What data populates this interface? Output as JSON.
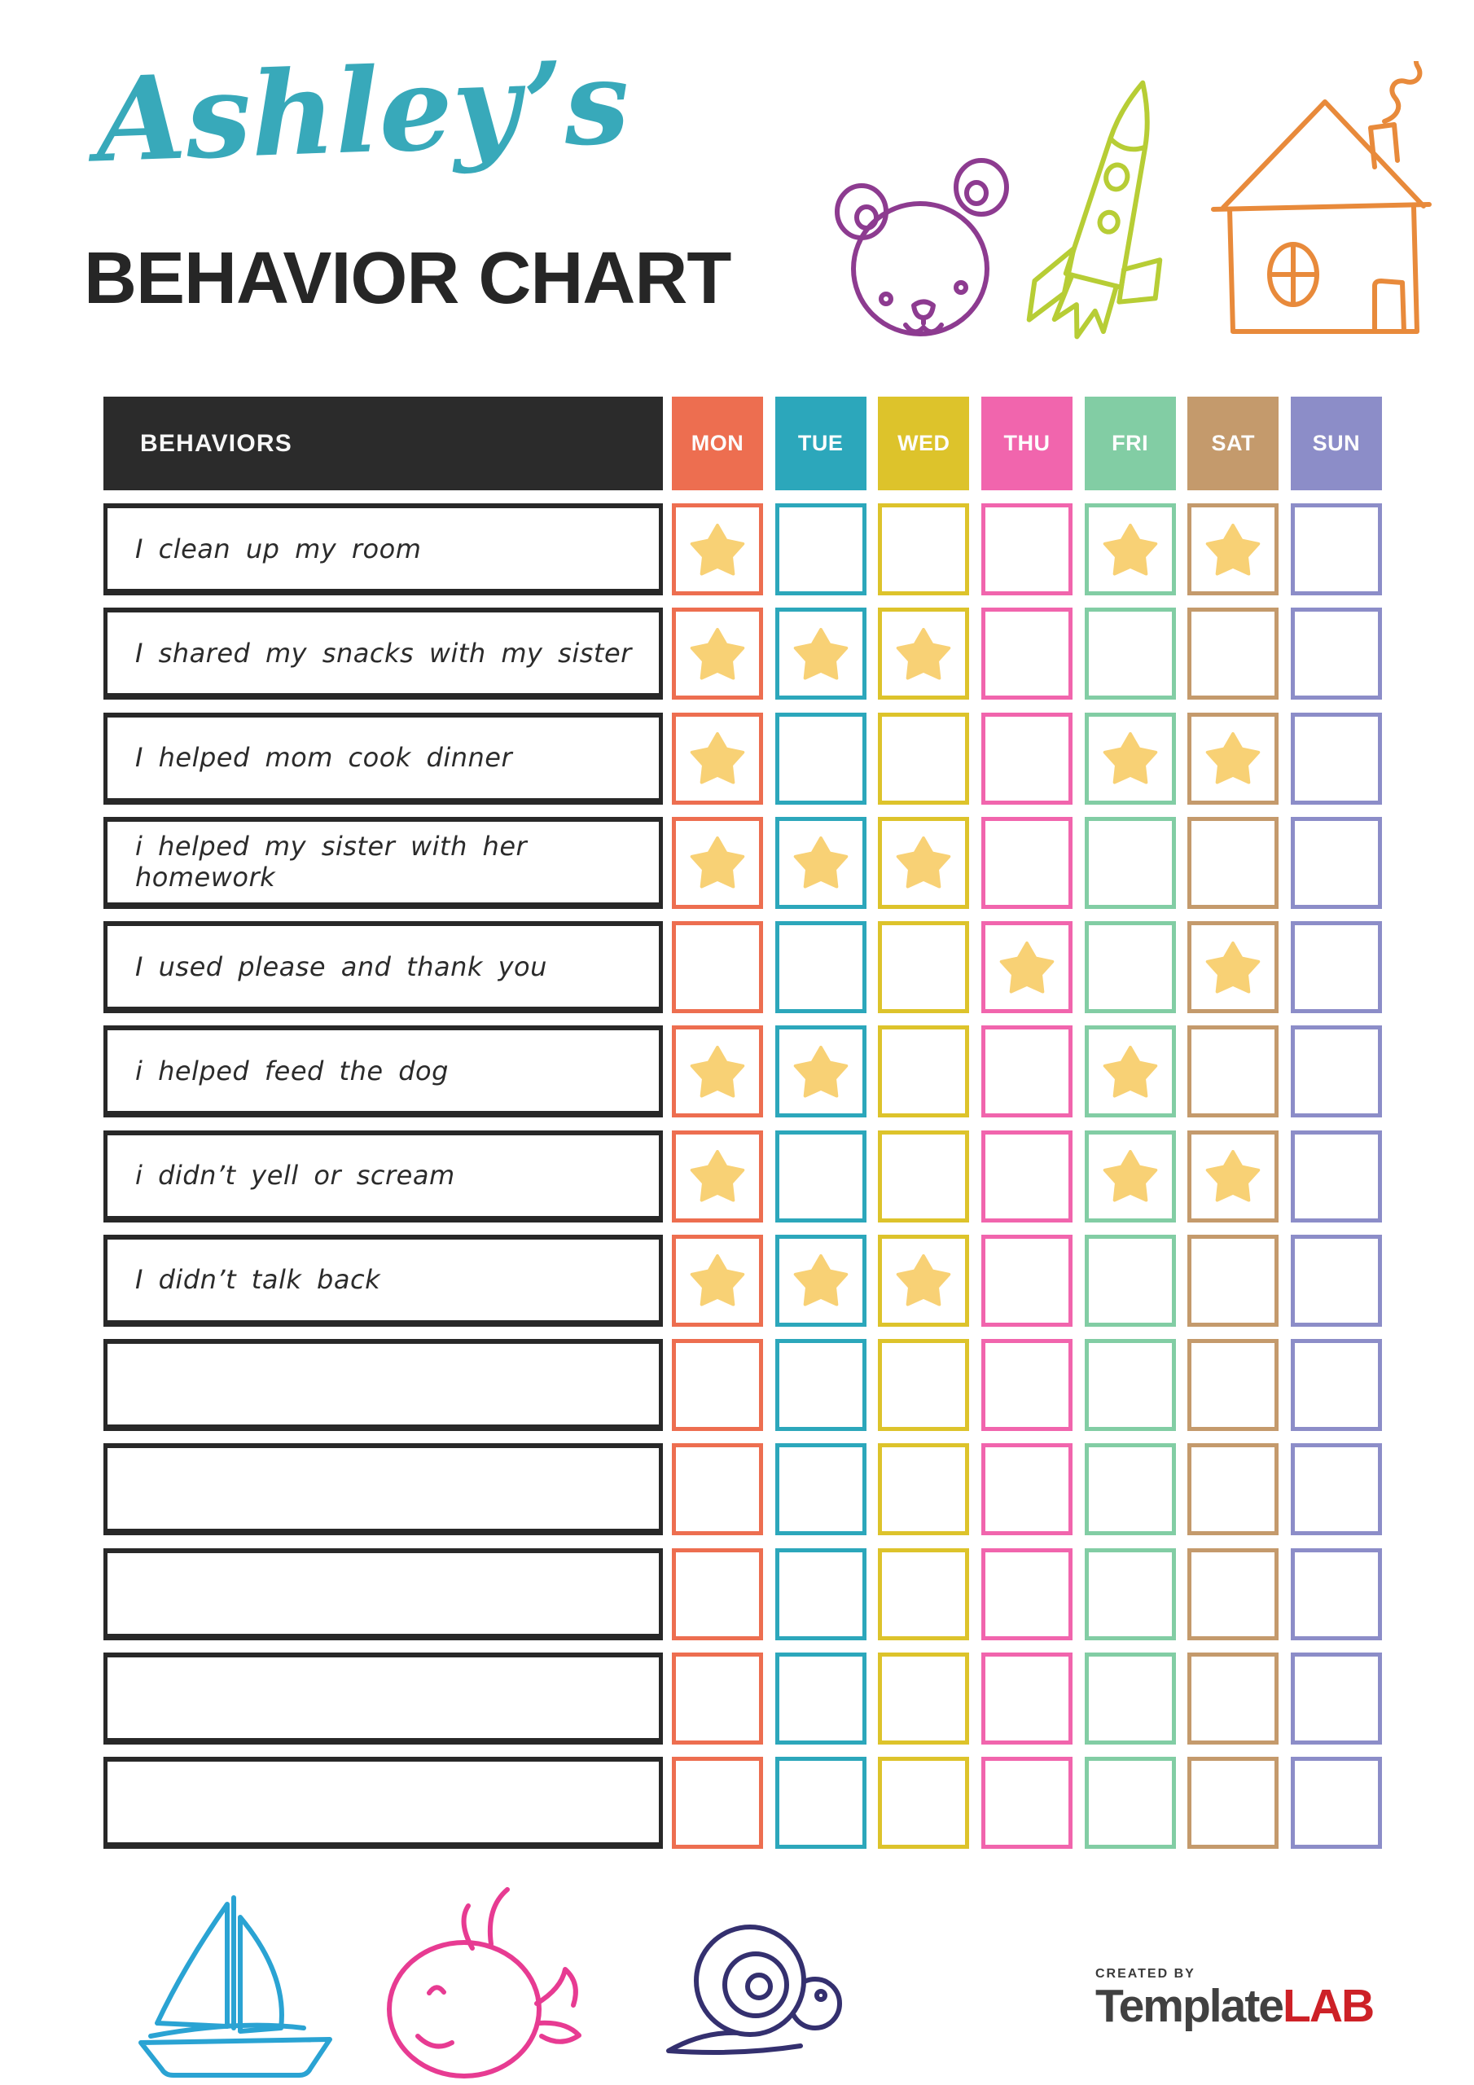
{
  "page": {
    "title_script": "Ashley’s",
    "title_main": "BEHAVIOR CHART"
  },
  "colors": {
    "title_teal": "#38a9ba",
    "heading_black": "#262626",
    "table_header_bg": "#2b2b2b",
    "row_border_black": "#282828",
    "star_gold": "#f8d175"
  },
  "table": {
    "behaviors_header": "BEHAVIORS",
    "days": [
      {
        "label": "MON",
        "color": "#ed6e50"
      },
      {
        "label": "TUE",
        "color": "#2ca7bb"
      },
      {
        "label": "WED",
        "color": "#ddc32b"
      },
      {
        "label": "THU",
        "color": "#f165ad"
      },
      {
        "label": "FRI",
        "color": "#82cda4"
      },
      {
        "label": "SAT",
        "color": "#c49a6c"
      },
      {
        "label": "SUN",
        "color": "#8c8dc8"
      }
    ],
    "rows": [
      {
        "label": "I clean up my room",
        "stars": [
          0,
          4,
          5
        ]
      },
      {
        "label": "I shared my snacks with my sister",
        "stars": [
          0,
          1,
          2
        ]
      },
      {
        "label": "I helped mom cook dinner",
        "stars": [
          0,
          4,
          5
        ]
      },
      {
        "label": "i helped my sister with her homework",
        "stars": [
          0,
          1,
          2
        ]
      },
      {
        "label": "I used please and thank you",
        "stars": [
          3,
          5
        ]
      },
      {
        "label": "i helped feed the dog",
        "stars": [
          0,
          1,
          4
        ]
      },
      {
        "label": "i didn’t yell or scream",
        "stars": [
          0,
          4,
          5
        ]
      },
      {
        "label": "I didn’t talk back",
        "stars": [
          0,
          1,
          2
        ]
      },
      {
        "label": "",
        "stars": []
      },
      {
        "label": "",
        "stars": []
      },
      {
        "label": "",
        "stars": []
      },
      {
        "label": "",
        "stars": []
      },
      {
        "label": "",
        "stars": []
      }
    ]
  },
  "doodles": {
    "bear_color": "#8d3b90",
    "rocket_color": "#b7cd35",
    "house_color": "#e88a3b",
    "sailboat_color": "#2aa3d3",
    "whale_color": "#e73b92",
    "snail_color": "#34306f"
  },
  "footer": {
    "created_by": "CREATED BY",
    "brand_dark": "Template",
    "brand_accent": "LAB",
    "brand_dark_color": "#414141",
    "brand_accent_color": "#cd2127"
  }
}
